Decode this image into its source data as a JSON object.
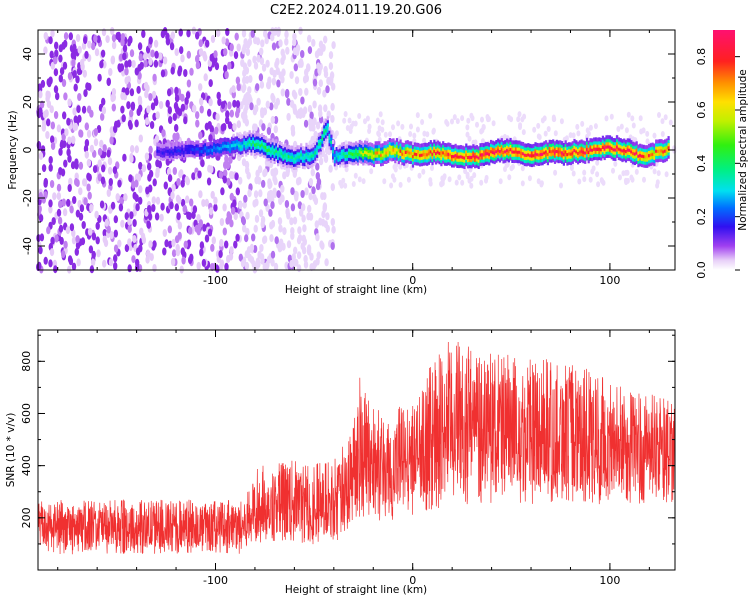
{
  "title": "C2E2.2024.011.19.20.G06",
  "chart_data": [
    {
      "type": "heatmap",
      "xlabel": "Height of straight line (km)",
      "ylabel": "Frequency (Hz)",
      "xlim": [
        -190,
        133
      ],
      "ylim": [
        -50,
        50
      ],
      "xticks": [
        -100,
        0,
        100
      ],
      "yticks": [
        -40,
        -20,
        0,
        20,
        40
      ],
      "colorbar": {
        "label": "Normalized spectral amplitude",
        "ticks": [
          0.0,
          0.2,
          0.4,
          0.6,
          0.8
        ],
        "range": [
          0.0,
          0.9
        ]
      },
      "ridge": {
        "x": [
          -130,
          -110,
          -90,
          -80,
          -70,
          -60,
          -50,
          -44,
          -40,
          -30,
          -20,
          -10,
          0,
          10,
          20,
          30,
          40,
          50,
          60,
          70,
          80,
          90,
          100,
          110,
          115,
          120,
          130
        ],
        "y": [
          -1,
          0,
          2,
          3,
          -1,
          -3,
          -2,
          10,
          -3,
          -1,
          -2,
          0,
          -2,
          -1,
          -2,
          -3,
          -1,
          0,
          -2,
          -1,
          -1,
          0,
          1,
          0,
          -3,
          -2,
          1
        ],
        "amplitude": [
          0.15,
          0.2,
          0.3,
          0.42,
          0.4,
          0.38,
          0.35,
          0.4,
          0.3,
          0.45,
          0.65,
          0.7,
          0.78,
          0.8,
          0.82,
          0.85,
          0.86,
          0.86,
          0.87,
          0.86,
          0.85,
          0.86,
          0.85,
          0.84,
          0.8,
          0.75,
          0.78
        ]
      }
    },
    {
      "type": "line",
      "xlabel": "Height of straight line (km)",
      "ylabel": "SNR (10 * v/v)",
      "xlim": [
        -190,
        133
      ],
      "ylim": [
        0,
        920
      ],
      "xticks": [
        -100,
        0,
        100
      ],
      "yticks": [
        200,
        400,
        600,
        800
      ],
      "line_color": "#f03030",
      "envelope": {
        "x": [
          -190,
          -160,
          -130,
          -100,
          -85,
          -80,
          -70,
          -60,
          -40,
          -30,
          -28,
          -20,
          -10,
          0,
          10,
          20,
          30,
          40,
          60,
          80,
          100,
          120,
          133
        ],
        "low": [
          60,
          60,
          60,
          60,
          60,
          100,
          110,
          100,
          90,
          180,
          200,
          190,
          190,
          210,
          230,
          240,
          250,
          250,
          250,
          250,
          250,
          250,
          250
        ],
        "high": [
          270,
          270,
          270,
          270,
          280,
          390,
          420,
          420,
          420,
          550,
          760,
          620,
          620,
          650,
          800,
          900,
          850,
          830,
          820,
          800,
          730,
          680,
          640
        ]
      }
    }
  ]
}
